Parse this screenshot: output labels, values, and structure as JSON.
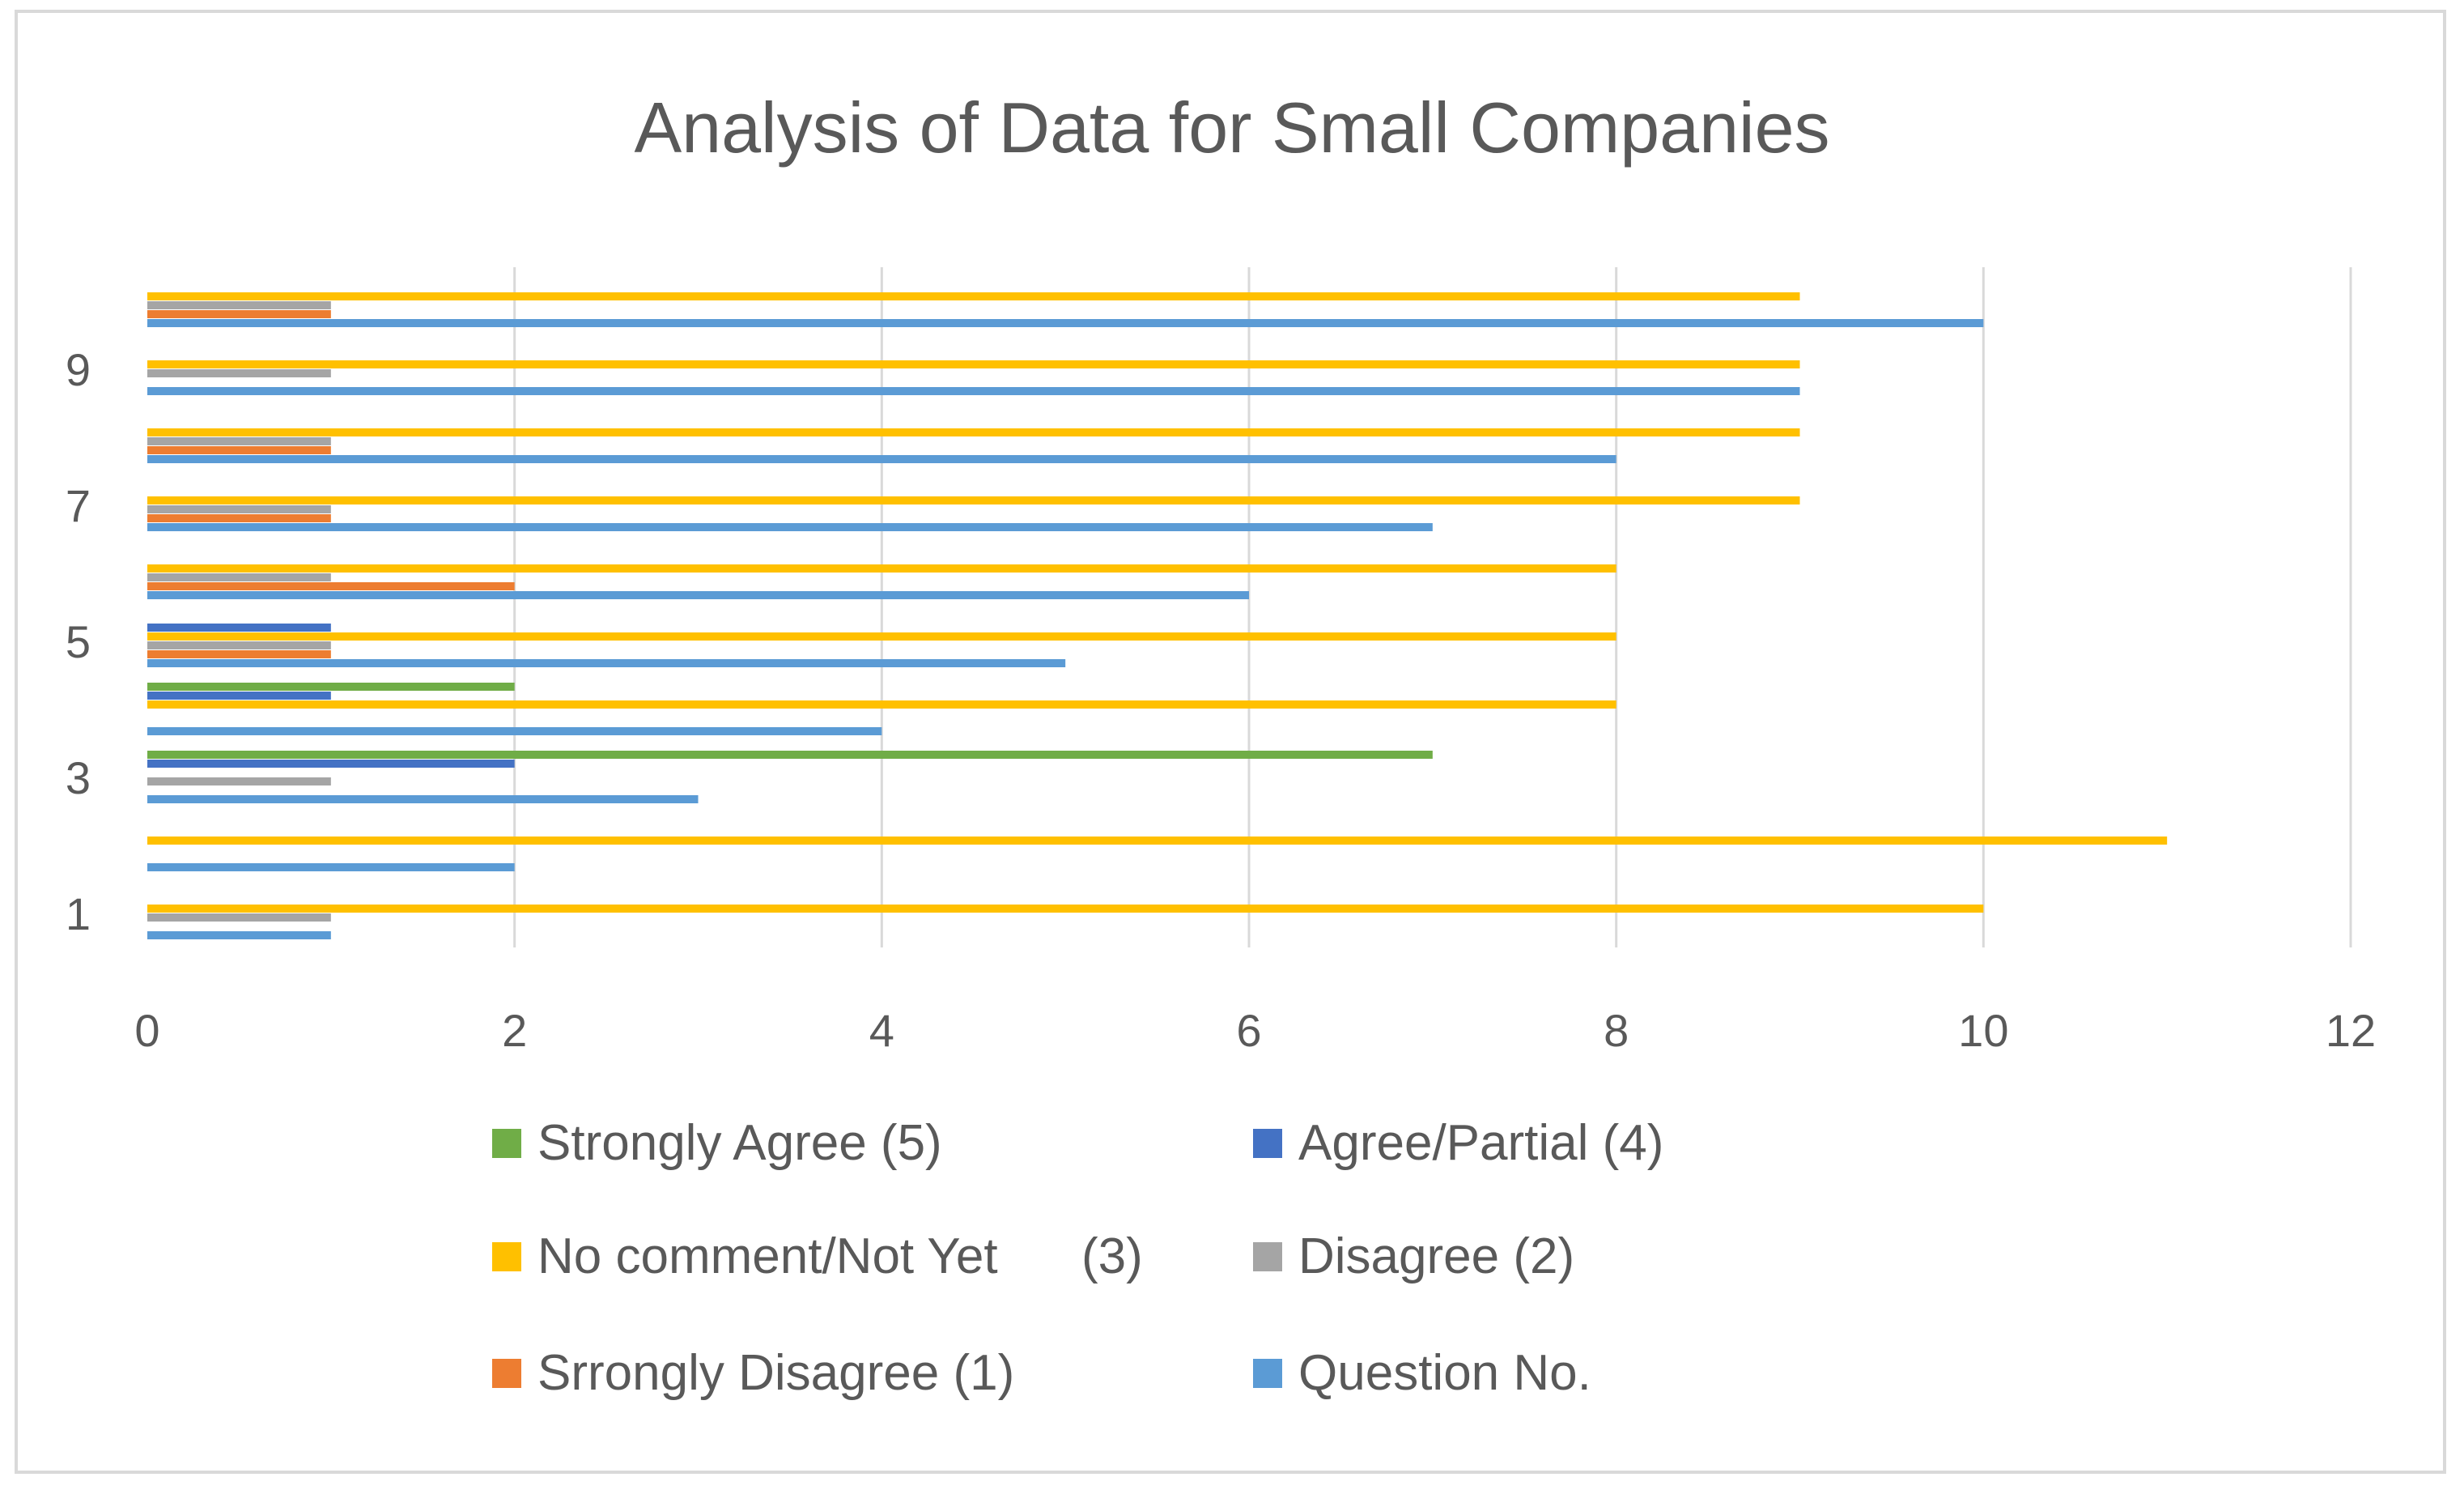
{
  "chart_data": {
    "type": "bar",
    "orientation": "horizontal",
    "title": "Analysis of Data for Small Companies",
    "xlabel": "",
    "ylabel": "",
    "xlim": [
      0,
      12
    ],
    "x_ticks": [
      "0",
      "2",
      "4",
      "6",
      "8",
      "10",
      "12"
    ],
    "categories": [
      "1",
      "2",
      "3",
      "4",
      "5",
      "6",
      "7",
      "8",
      "9",
      "10"
    ],
    "y_tick_labels": [
      "1",
      "3",
      "5",
      "7",
      "9"
    ],
    "gridlines": "vertical",
    "legend_position": "bottom",
    "series": [
      {
        "name": "Question No.",
        "color": "#5b9bd5",
        "values": [
          1,
          2,
          3,
          4,
          5,
          6,
          7,
          8,
          9,
          10
        ]
      },
      {
        "name": "Srrongly Disagree (1)",
        "color": "#ed7d31",
        "values": [
          0,
          0,
          0,
          0,
          1,
          2,
          1,
          1,
          0,
          1
        ]
      },
      {
        "name": "Disagree (2)",
        "color": "#a5a5a5",
        "values": [
          1,
          0,
          1,
          0,
          1,
          1,
          1,
          1,
          1,
          1
        ]
      },
      {
        "name": "No comment/Not Yet      (3)",
        "color": "#ffc000",
        "values": [
          10,
          11,
          0,
          8,
          8,
          8,
          9,
          9,
          9,
          9
        ]
      },
      {
        "name": "Agree/Partial (4)",
        "color": "#4472c4",
        "values": [
          0,
          0,
          2,
          1,
          1,
          0,
          0,
          0,
          0,
          0
        ]
      },
      {
        "name": "Strongly Agree (5)",
        "color": "#70ad47",
        "values": [
          0,
          0,
          7,
          2,
          0,
          0,
          0,
          0,
          0,
          0
        ]
      }
    ],
    "legend": [
      {
        "name": "Strongly Agree (5)",
        "color": "#70ad47"
      },
      {
        "name": "Agree/Partial (4)",
        "color": "#4472c4"
      },
      {
        "name": "No comment/Not Yet      (3)",
        "color": "#ffc000"
      },
      {
        "name": "Disagree (2)",
        "color": "#a5a5a5"
      },
      {
        "name": "Srrongly Disagree (1)",
        "color": "#ed7d31"
      },
      {
        "name": "Question No.",
        "color": "#5b9bd5"
      }
    ]
  }
}
